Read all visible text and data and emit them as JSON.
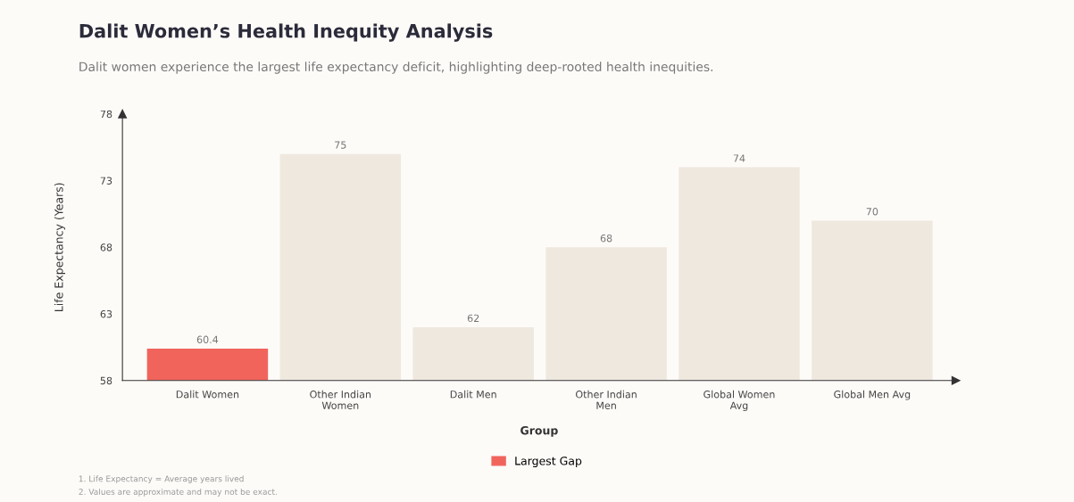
{
  "chart_data": {
    "type": "bar",
    "title": "Dalit Women’s Health Inequity Analysis",
    "subtitle": "Dalit women experience the largest life expectancy deficit, highlighting deep-rooted health inequities.",
    "xlabel": "Group",
    "ylabel": "Life Expectancy (Years)",
    "categories": [
      "Dalit Women",
      "Other Indian\nWomen",
      "Dalit Men",
      "Other Indian\nMen",
      "Global Women\nAvg",
      "Global Men Avg"
    ],
    "series": [
      {
        "name": "Largest Gap",
        "color": "#f0645c",
        "values": [
          60.4,
          null,
          null,
          null,
          null,
          null
        ]
      },
      {
        "color": "#efe8df",
        "values": [
          null,
          75,
          62,
          68,
          74,
          70
        ]
      }
    ],
    "ylim": [
      58,
      78
    ],
    "yticks": [
      58,
      63,
      68,
      73,
      78
    ],
    "data_labels": true,
    "grid": false,
    "legend": "bottom",
    "annotations": [
      "1. Life Expectancy = Average years lived",
      "2. Values are approximate and may not be exact."
    ]
  }
}
